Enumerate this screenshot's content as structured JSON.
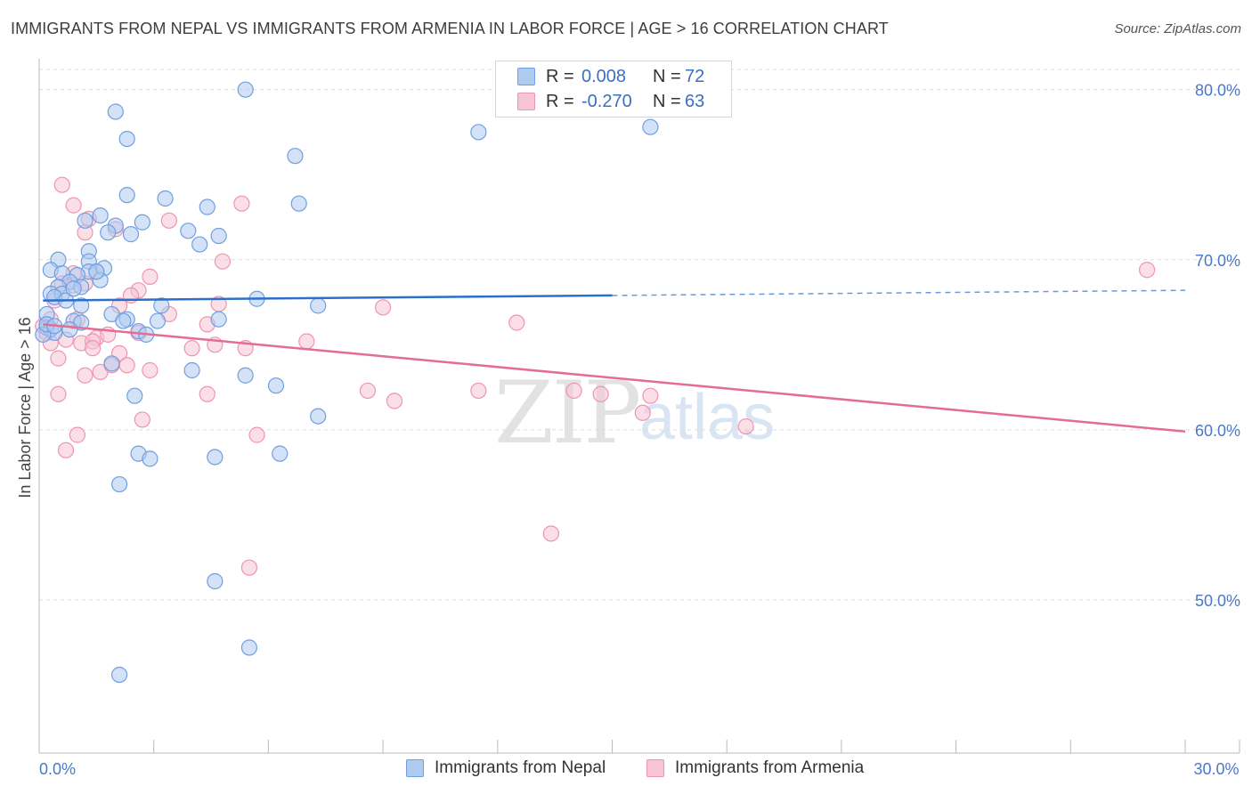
{
  "title": "IMMIGRANTS FROM NEPAL VS IMMIGRANTS FROM ARMENIA IN LABOR FORCE | AGE > 16 CORRELATION CHART",
  "source": "Source: ZipAtlas.com",
  "watermark": {
    "zip": "ZIP",
    "atlas": "atlas"
  },
  "legend": {
    "rows": [
      {
        "r_label": "R =",
        "r_value": "0.008",
        "n_label": "N =",
        "n_value": "72"
      },
      {
        "r_label": "R =",
        "r_value": "-0.270",
        "n_label": "N =",
        "n_value": "63"
      }
    ]
  },
  "bottom_legend": {
    "series1": "Immigrants from Nepal",
    "series2": "Immigrants from Armenia"
  },
  "colors": {
    "nepal_fill": "#aecbf0",
    "nepal_stroke": "#6f9fe0",
    "nepal_line": "#2b6fcb",
    "armenia_fill": "#f7c4d4",
    "armenia_stroke": "#ee94b2",
    "armenia_line": "#e46c95",
    "tick_text": "#4a78c8",
    "grid": "#dcdcdc"
  },
  "chart_data": {
    "type": "scatter",
    "title": "IMMIGRANTS FROM NEPAL VS IMMIGRANTS FROM ARMENIA IN LABOR FORCE | AGE > 16 CORRELATION CHART",
    "xlabel": "",
    "ylabel": "In Labor Force | Age > 16",
    "xlim": [
      0,
      30
    ],
    "ylim": [
      41,
      81.5
    ],
    "x_tick_labels": [
      {
        "value": 0,
        "label": "0.0%"
      },
      {
        "value": 30,
        "label": "30.0%"
      }
    ],
    "y_ticks": [
      {
        "value": 50,
        "label": "50.0%"
      },
      {
        "value": 60,
        "label": "60.0%"
      },
      {
        "value": 70,
        "label": "70.0%"
      },
      {
        "value": 80,
        "label": "80.0%"
      }
    ],
    "grid": true,
    "series": [
      {
        "name": "Immigrants from Nepal",
        "r": 0.008,
        "n": 72,
        "trend": {
          "x0": 0.1,
          "y0": 67.6,
          "x1": 15.0,
          "y1": 67.9,
          "dashed_to_x": 30.0,
          "dashed_to_y": 68.2
        },
        "points": [
          [
            5.4,
            80.0
          ],
          [
            2.0,
            78.7
          ],
          [
            11.5,
            77.5
          ],
          [
            16.0,
            77.8
          ],
          [
            2.3,
            77.1
          ],
          [
            6.7,
            76.1
          ],
          [
            2.3,
            73.8
          ],
          [
            3.3,
            73.6
          ],
          [
            6.8,
            73.3
          ],
          [
            4.4,
            73.1
          ],
          [
            1.6,
            72.6
          ],
          [
            1.2,
            72.3
          ],
          [
            2.0,
            72.0
          ],
          [
            2.7,
            72.2
          ],
          [
            3.9,
            71.7
          ],
          [
            1.8,
            71.6
          ],
          [
            2.4,
            71.5
          ],
          [
            4.7,
            71.4
          ],
          [
            4.2,
            70.9
          ],
          [
            1.3,
            70.5
          ],
          [
            0.5,
            70.0
          ],
          [
            1.3,
            69.9
          ],
          [
            0.3,
            69.4
          ],
          [
            1.7,
            69.5
          ],
          [
            1.3,
            69.3
          ],
          [
            0.6,
            69.2
          ],
          [
            1.0,
            69.1
          ],
          [
            1.6,
            68.8
          ],
          [
            0.8,
            68.7
          ],
          [
            0.5,
            68.4
          ],
          [
            1.1,
            68.4
          ],
          [
            0.3,
            68.0
          ],
          [
            0.6,
            68.0
          ],
          [
            0.4,
            67.8
          ],
          [
            0.7,
            67.6
          ],
          [
            5.7,
            67.7
          ],
          [
            1.1,
            67.3
          ],
          [
            3.2,
            67.3
          ],
          [
            7.3,
            67.3
          ],
          [
            0.2,
            66.8
          ],
          [
            1.9,
            66.8
          ],
          [
            2.3,
            66.5
          ],
          [
            2.2,
            66.4
          ],
          [
            4.7,
            66.5
          ],
          [
            0.9,
            66.4
          ],
          [
            1.1,
            66.3
          ],
          [
            3.1,
            66.4
          ],
          [
            0.2,
            66.0
          ],
          [
            0.3,
            65.9
          ],
          [
            0.4,
            65.7
          ],
          [
            0.1,
            65.6
          ],
          [
            2.6,
            65.8
          ],
          [
            2.8,
            65.6
          ],
          [
            1.9,
            63.9
          ],
          [
            4.0,
            63.5
          ],
          [
            5.4,
            63.2
          ],
          [
            6.2,
            62.6
          ],
          [
            2.5,
            62.0
          ],
          [
            7.3,
            60.8
          ],
          [
            2.6,
            58.6
          ],
          [
            2.9,
            58.3
          ],
          [
            4.6,
            58.4
          ],
          [
            6.3,
            58.6
          ],
          [
            2.1,
            56.8
          ],
          [
            4.6,
            51.1
          ],
          [
            5.5,
            47.2
          ],
          [
            2.1,
            45.6
          ],
          [
            0.2,
            66.2
          ],
          [
            0.4,
            66.1
          ],
          [
            1.5,
            69.3
          ],
          [
            0.9,
            68.3
          ],
          [
            0.8,
            65.9
          ]
        ]
      },
      {
        "name": "Immigrants from Armenia",
        "r": -0.27,
        "n": 63,
        "trend": {
          "x0": 0.1,
          "y0": 66.2,
          "x1": 30.0,
          "y1": 59.9
        },
        "points": [
          [
            0.6,
            74.4
          ],
          [
            5.3,
            73.3
          ],
          [
            0.9,
            73.2
          ],
          [
            3.4,
            72.3
          ],
          [
            1.3,
            72.4
          ],
          [
            2.0,
            71.8
          ],
          [
            1.2,
            71.6
          ],
          [
            4.8,
            69.9
          ],
          [
            0.9,
            69.2
          ],
          [
            1.5,
            69.3
          ],
          [
            2.9,
            69.0
          ],
          [
            29.0,
            69.4
          ],
          [
            0.6,
            68.6
          ],
          [
            0.9,
            68.5
          ],
          [
            1.2,
            68.6
          ],
          [
            2.6,
            68.2
          ],
          [
            2.4,
            67.9
          ],
          [
            0.4,
            67.6
          ],
          [
            4.7,
            67.4
          ],
          [
            2.1,
            67.3
          ],
          [
            3.4,
            66.8
          ],
          [
            9.0,
            67.2
          ],
          [
            0.3,
            66.5
          ],
          [
            1.0,
            66.5
          ],
          [
            12.5,
            66.3
          ],
          [
            4.4,
            66.2
          ],
          [
            0.1,
            66.1
          ],
          [
            0.2,
            65.7
          ],
          [
            0.7,
            65.3
          ],
          [
            1.5,
            65.4
          ],
          [
            2.6,
            65.7
          ],
          [
            1.8,
            65.6
          ],
          [
            0.3,
            65.1
          ],
          [
            1.1,
            65.1
          ],
          [
            1.4,
            65.2
          ],
          [
            4.6,
            65.0
          ],
          [
            7.0,
            65.2
          ],
          [
            4.0,
            64.8
          ],
          [
            5.4,
            64.8
          ],
          [
            1.4,
            64.8
          ],
          [
            2.1,
            64.5
          ],
          [
            0.5,
            64.2
          ],
          [
            1.6,
            63.4
          ],
          [
            1.2,
            63.2
          ],
          [
            2.3,
            63.8
          ],
          [
            1.9,
            63.8
          ],
          [
            2.9,
            63.5
          ],
          [
            11.5,
            62.3
          ],
          [
            14.0,
            62.3
          ],
          [
            8.6,
            62.3
          ],
          [
            4.4,
            62.1
          ],
          [
            0.5,
            62.1
          ],
          [
            16.0,
            62.0
          ],
          [
            14.7,
            62.1
          ],
          [
            9.3,
            61.7
          ],
          [
            15.8,
            61.0
          ],
          [
            2.7,
            60.6
          ],
          [
            18.5,
            60.2
          ],
          [
            1.0,
            59.7
          ],
          [
            5.7,
            59.7
          ],
          [
            0.7,
            58.8
          ],
          [
            13.4,
            53.9
          ],
          [
            5.5,
            51.9
          ]
        ]
      }
    ]
  }
}
